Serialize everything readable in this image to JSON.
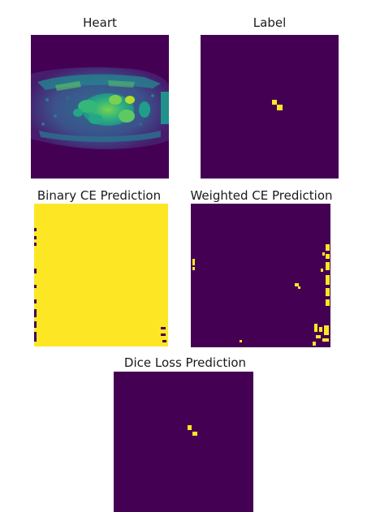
{
  "panels": [
    {
      "title": "Heart"
    },
    {
      "title": "Label"
    },
    {
      "title": "Binary CE Prediction"
    },
    {
      "title": "Weighted CE Prediction"
    },
    {
      "title": "Dice Loss Prediction"
    }
  ],
  "colormap": {
    "low": "#440154",
    "high": "#fde725",
    "mid_teal": "#21918c",
    "mid_green": "#35b779",
    "mid_blue": "#3b528b"
  }
}
